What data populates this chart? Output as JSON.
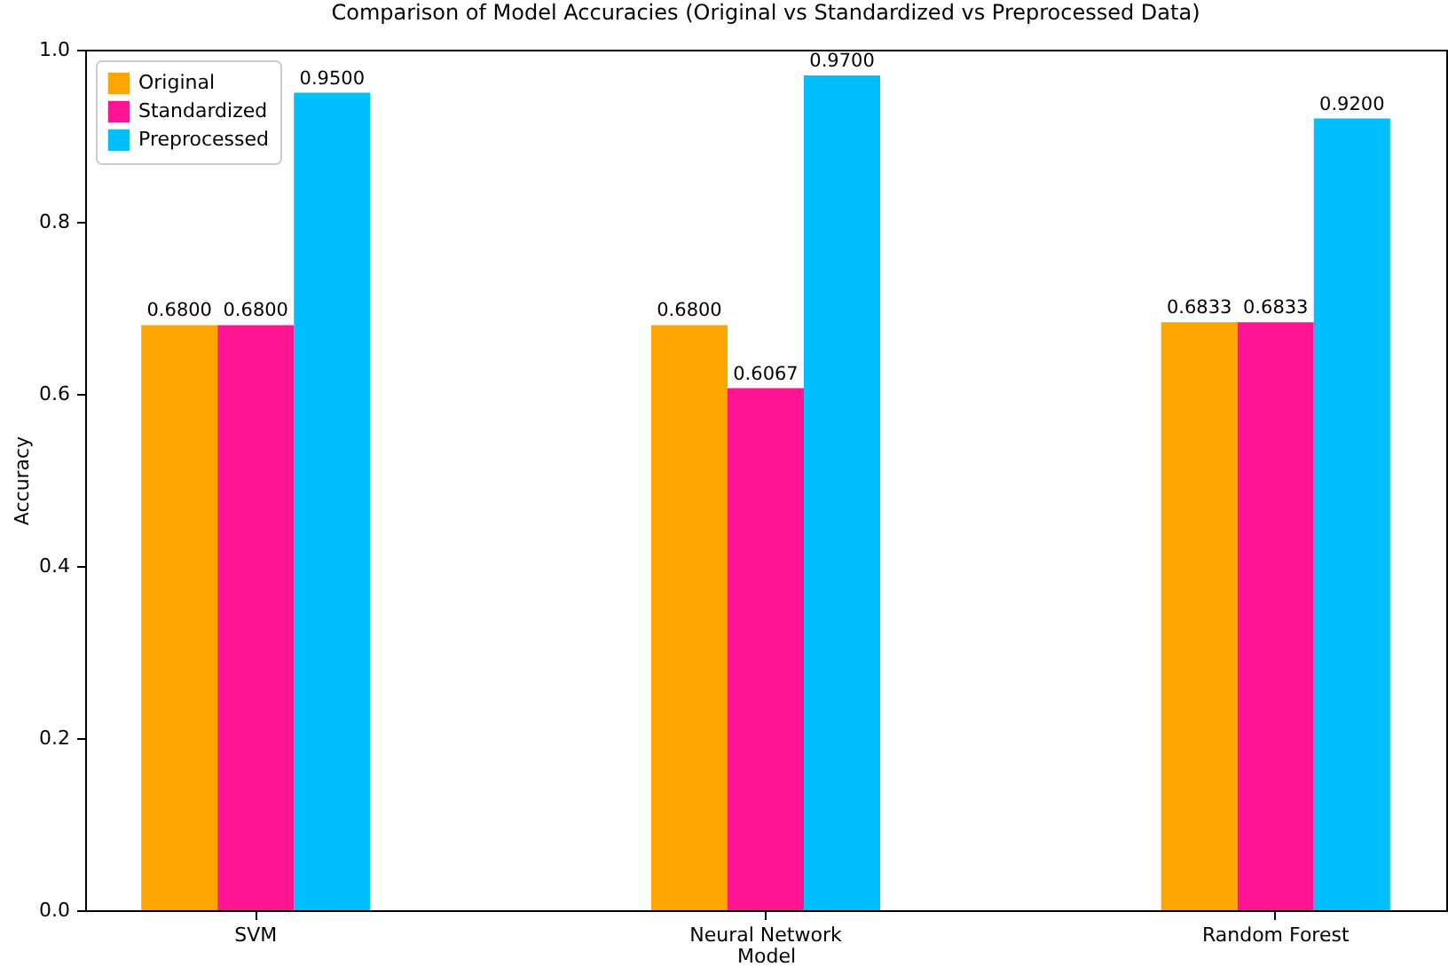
{
  "chart_data": {
    "type": "bar",
    "title": "Comparison of Model Accuracies (Original vs Standardized vs Preprocessed Data)",
    "xlabel": "Model",
    "ylabel": "Accuracy",
    "categories": [
      "SVM",
      "Neural Network",
      "Random Forest"
    ],
    "series": [
      {
        "name": "Original",
        "color": "#ffa500",
        "values": [
          0.68,
          0.68,
          0.6833
        ],
        "value_labels": [
          "0.6800",
          "0.6800",
          "0.6833"
        ]
      },
      {
        "name": "Standardized",
        "color": "#ff1493",
        "values": [
          0.68,
          0.6067,
          0.6833
        ],
        "value_labels": [
          "0.6800",
          "0.6067",
          "0.6833"
        ]
      },
      {
        "name": "Preprocessed",
        "color": "#00bfff",
        "values": [
          0.95,
          0.97,
          0.92
        ],
        "value_labels": [
          "0.9500",
          "0.9700",
          "0.9200"
        ]
      }
    ],
    "ylim": [
      0,
      1
    ],
    "yticks": [
      {
        "value": 0,
        "label": "0.0"
      },
      0.2,
      0.4,
      0.6,
      0.8,
      {
        "value": 1,
        "label": "1.0"
      }
    ],
    "grid": false,
    "legend": "top left"
  }
}
